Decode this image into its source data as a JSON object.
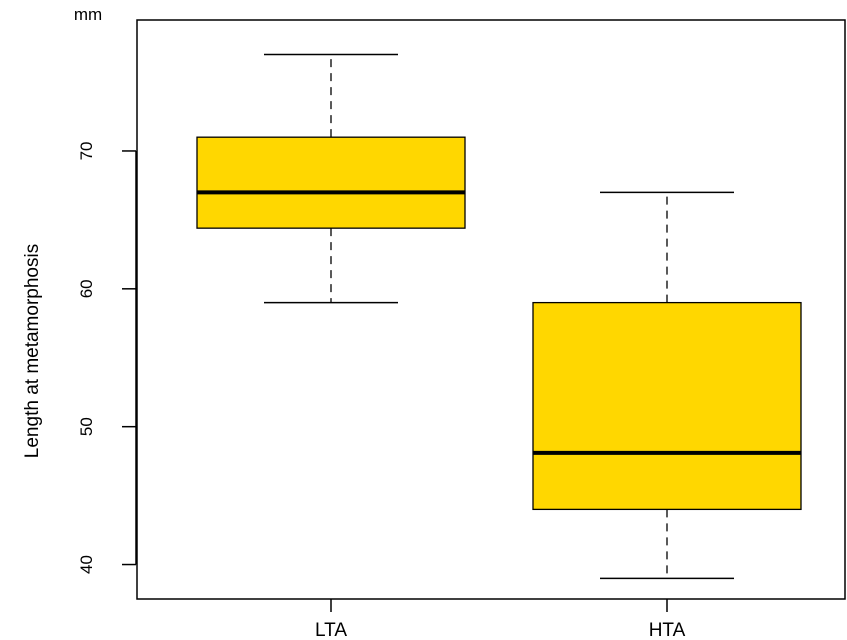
{
  "chart_data": {
    "type": "boxplot",
    "unit_label": "mm",
    "ylabel": "Length at metamorphosis",
    "xlabel": "",
    "title": "",
    "categories": [
      "LTA",
      "HTA"
    ],
    "ylim": [
      37.5,
      79.5
    ],
    "yticks": [
      40,
      50,
      60,
      70
    ],
    "box_color": "#FFD700",
    "line_color": "#000000",
    "boxes": [
      {
        "name": "LTA",
        "whisker_low": 59,
        "q1": 64.4,
        "median": 67,
        "q3": 71,
        "whisker_high": 77
      },
      {
        "name": "HTA",
        "whisker_low": 39,
        "q1": 44,
        "median": 48.1,
        "q3": 59,
        "whisker_high": 67
      }
    ],
    "grid": false,
    "legend": "none"
  }
}
